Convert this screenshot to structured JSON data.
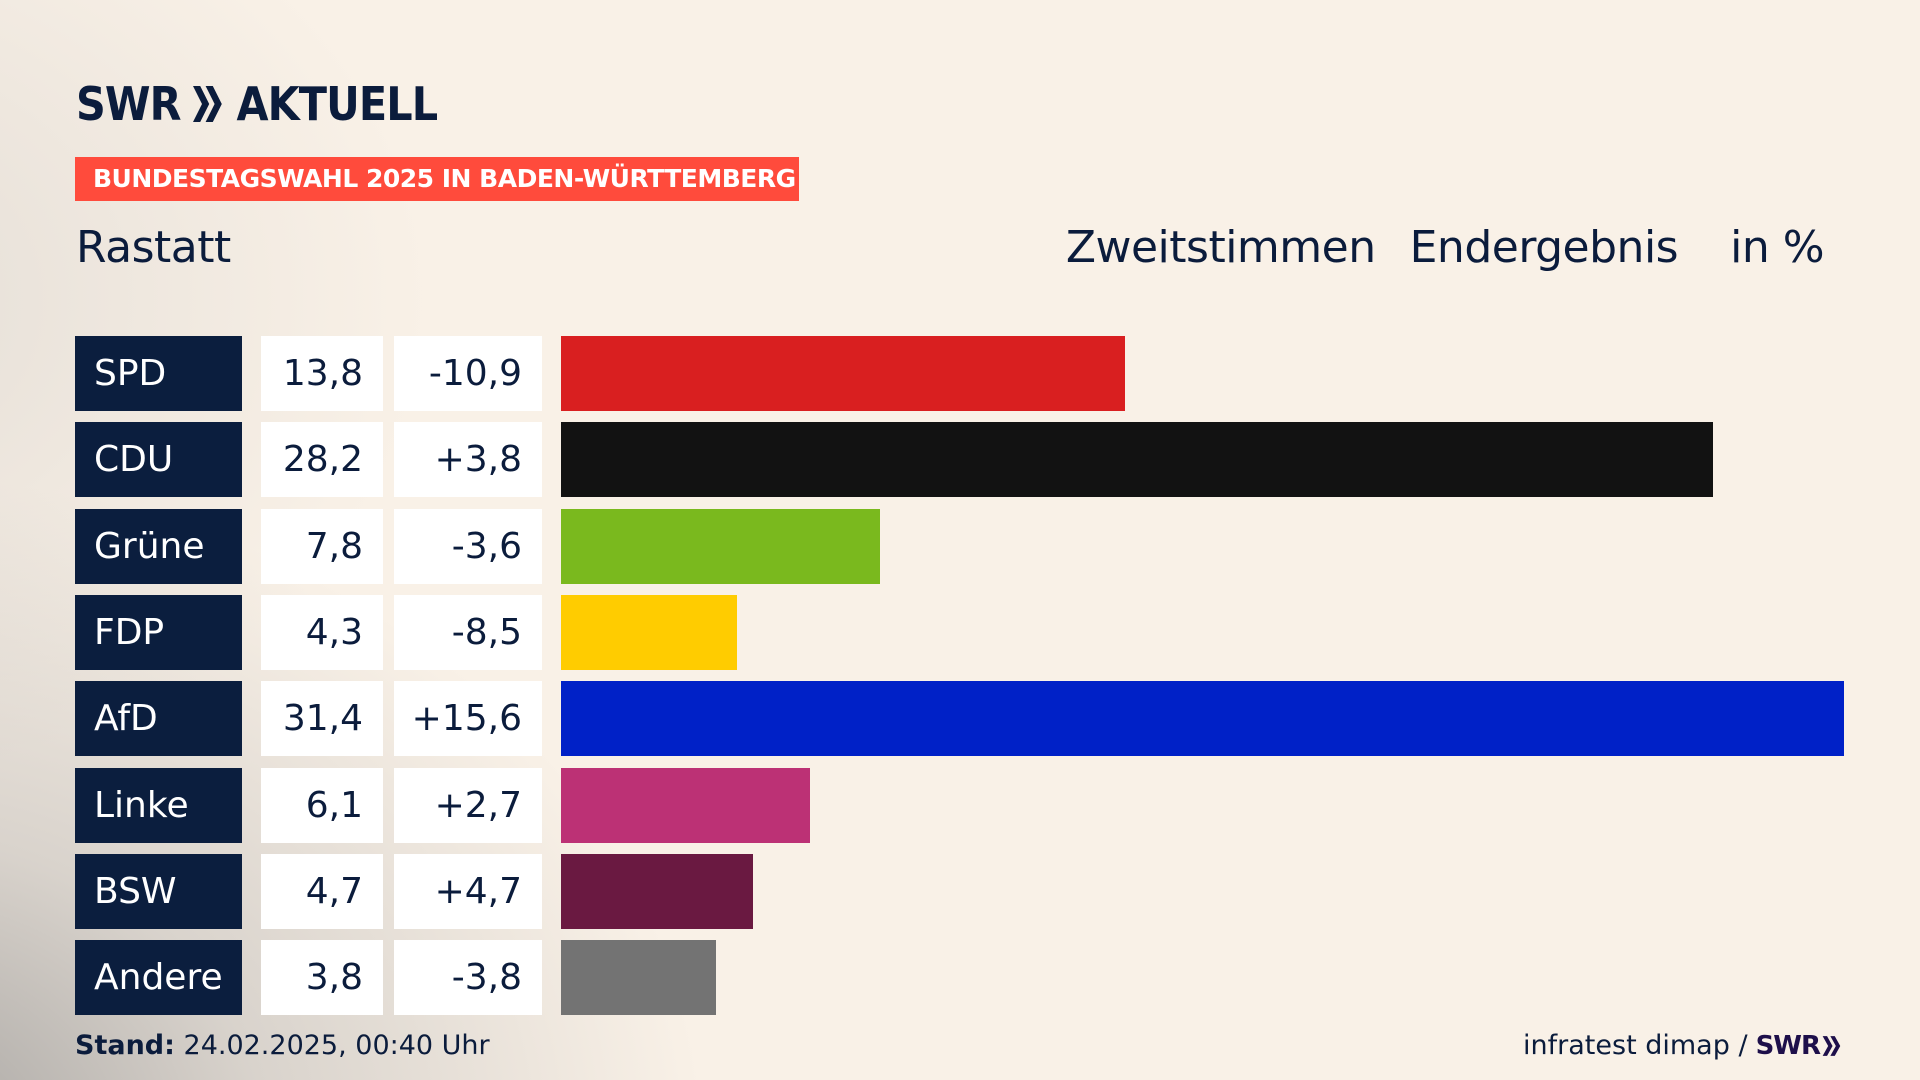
{
  "header": {
    "logo_brand": "SWR",
    "logo_product": "AKTUELL",
    "banner": "BUNDESTAGSWAHL 2025 IN BADEN-WÜRTTEMBERG",
    "region": "Rastatt",
    "column_headers": [
      "Zweitstimmen",
      "Endergebnis",
      "in %"
    ]
  },
  "chart_data": {
    "type": "bar",
    "orientation": "horizontal",
    "title": "Bundestagswahl 2025 in Baden-Württemberg – Rastatt",
    "subtitle": "Zweitstimmen Endergebnis in %",
    "xlim": [
      0,
      31.4
    ],
    "grid": false,
    "categories": [
      "SPD",
      "CDU",
      "Grüne",
      "FDP",
      "AfD",
      "Linke",
      "BSW",
      "Andere"
    ],
    "values": [
      13.8,
      28.2,
      7.8,
      4.3,
      31.4,
      6.1,
      4.7,
      3.8
    ],
    "value_labels": [
      "13,8",
      "28,2",
      "7,8",
      "4,3",
      "31,4",
      "6,1",
      "4,7",
      "3,8"
    ],
    "changes": [
      -10.9,
      3.8,
      -3.6,
      -8.5,
      15.6,
      2.7,
      4.7,
      -3.8
    ],
    "change_labels": [
      "-10,9",
      "+3,8",
      "-3,6",
      "-8,5",
      "+15,6",
      "+2,7",
      "+4,7",
      "-3,8"
    ],
    "colors": [
      "#d91f20",
      "#121212",
      "#7ab91e",
      "#ffcc00",
      "#0021c7",
      "#bc3175",
      "#6a1941",
      "#737373"
    ]
  },
  "footer": {
    "stand_label": "Stand:",
    "stand_value": "24.02.2025, 00:40 Uhr",
    "source": "infratest dimap /",
    "source_brand": "SWR"
  },
  "colors": {
    "banner": "#ff4b3c",
    "navy": "#0b1e3e",
    "background": "#f9f1e7"
  }
}
